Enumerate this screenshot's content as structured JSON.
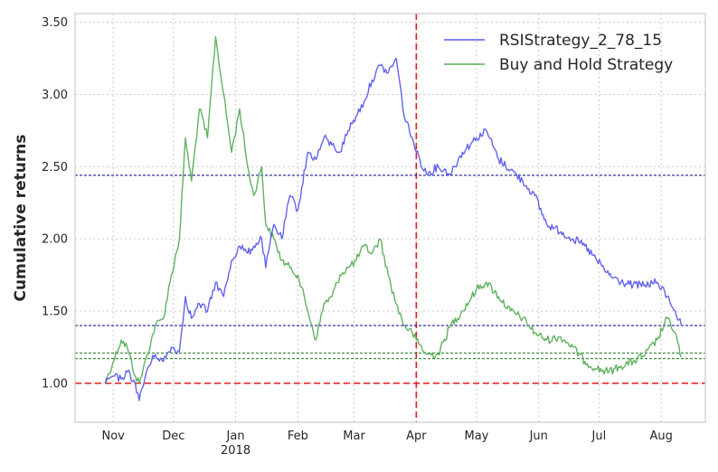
{
  "chart_data": {
    "type": "line",
    "title": "",
    "xlabel": "",
    "ylabel": "Cumulative returns",
    "x_ticks": [
      {
        "date": "2017-11-01",
        "label": "Nov",
        "sublabel": ""
      },
      {
        "date": "2017-12-01",
        "label": "Dec",
        "sublabel": ""
      },
      {
        "date": "2018-01-01",
        "label": "Jan",
        "sublabel": "2018"
      },
      {
        "date": "2018-02-01",
        "label": "Feb",
        "sublabel": ""
      },
      {
        "date": "2018-03-01",
        "label": "Mar",
        "sublabel": ""
      },
      {
        "date": "2018-04-01",
        "label": "Apr",
        "sublabel": ""
      },
      {
        "date": "2018-05-01",
        "label": "May",
        "sublabel": ""
      },
      {
        "date": "2018-06-01",
        "label": "Jun",
        "sublabel": ""
      },
      {
        "date": "2018-07-01",
        "label": "Jul",
        "sublabel": ""
      },
      {
        "date": "2018-08-01",
        "label": "Aug",
        "sublabel": ""
      }
    ],
    "y_ticks": [
      "1.00",
      "1.50",
      "2.00",
      "2.50",
      "3.00",
      "3.50"
    ],
    "xlim": [
      "2017-10-13",
      "2018-08-23"
    ],
    "ylim": [
      0.73,
      3.56
    ],
    "grid": true,
    "legend_position": "top-right",
    "series": [
      {
        "name": "RSIStrategy_2_78_15",
        "color": "#5b5bec",
        "x": [
          "2017-10-28",
          "2017-11-01",
          "2017-11-05",
          "2017-11-08",
          "2017-11-12",
          "2017-11-14",
          "2017-11-18",
          "2017-11-22",
          "2017-11-26",
          "2017-11-30",
          "2017-12-04",
          "2017-12-07",
          "2017-12-10",
          "2017-12-14",
          "2017-12-18",
          "2017-12-22",
          "2017-12-26",
          "2017-12-30",
          "2018-01-03",
          "2018-01-07",
          "2018-01-10",
          "2018-01-14",
          "2018-01-16",
          "2018-01-20",
          "2018-01-24",
          "2018-01-28",
          "2018-02-01",
          "2018-02-06",
          "2018-02-10",
          "2018-02-14",
          "2018-02-18",
          "2018-02-22",
          "2018-02-26",
          "2018-03-02",
          "2018-03-06",
          "2018-03-10",
          "2018-03-14",
          "2018-03-18",
          "2018-03-22",
          "2018-03-26",
          "2018-03-30",
          "2018-04-01",
          "2018-04-06",
          "2018-04-12",
          "2018-04-18",
          "2018-04-24",
          "2018-05-01",
          "2018-05-06",
          "2018-05-12",
          "2018-05-18",
          "2018-05-24",
          "2018-05-30",
          "2018-06-05",
          "2018-06-12",
          "2018-06-18",
          "2018-06-24",
          "2018-06-30",
          "2018-07-06",
          "2018-07-12",
          "2018-07-18",
          "2018-07-24",
          "2018-07-30",
          "2018-08-04",
          "2018-08-08",
          "2018-08-11"
        ],
        "y": [
          1.0,
          1.05,
          1.03,
          1.08,
          1.0,
          0.88,
          1.1,
          1.2,
          1.15,
          1.25,
          1.22,
          1.6,
          1.45,
          1.55,
          1.5,
          1.7,
          1.6,
          1.85,
          1.95,
          1.9,
          1.95,
          2.0,
          1.8,
          2.1,
          2.0,
          2.3,
          2.2,
          2.6,
          2.55,
          2.7,
          2.65,
          2.6,
          2.75,
          2.85,
          2.95,
          3.1,
          3.2,
          3.15,
          3.25,
          2.85,
          2.7,
          2.6,
          2.45,
          2.5,
          2.45,
          2.6,
          2.7,
          2.75,
          2.55,
          2.48,
          2.4,
          2.3,
          2.1,
          2.05,
          2.0,
          1.95,
          1.85,
          1.75,
          1.7,
          1.68,
          1.68,
          1.7,
          1.6,
          1.5,
          1.4
        ]
      },
      {
        "name": "Buy and Hold Strategy",
        "color": "#59ad59",
        "x": [
          "2017-10-28",
          "2017-11-01",
          "2017-11-05",
          "2017-11-08",
          "2017-11-12",
          "2017-11-14",
          "2017-11-18",
          "2017-11-22",
          "2017-11-26",
          "2017-11-30",
          "2017-12-04",
          "2017-12-07",
          "2017-12-10",
          "2017-12-14",
          "2017-12-18",
          "2017-12-22",
          "2017-12-26",
          "2017-12-30",
          "2018-01-03",
          "2018-01-07",
          "2018-01-10",
          "2018-01-14",
          "2018-01-16",
          "2018-01-20",
          "2018-01-24",
          "2018-01-28",
          "2018-02-01",
          "2018-02-06",
          "2018-02-10",
          "2018-02-14",
          "2018-02-18",
          "2018-02-22",
          "2018-02-26",
          "2018-03-02",
          "2018-03-06",
          "2018-03-10",
          "2018-03-14",
          "2018-03-18",
          "2018-03-22",
          "2018-03-26",
          "2018-03-30",
          "2018-04-01",
          "2018-04-06",
          "2018-04-12",
          "2018-04-18",
          "2018-04-24",
          "2018-05-01",
          "2018-05-06",
          "2018-05-12",
          "2018-05-18",
          "2018-05-24",
          "2018-05-30",
          "2018-06-05",
          "2018-06-12",
          "2018-06-18",
          "2018-06-24",
          "2018-06-30",
          "2018-07-06",
          "2018-07-12",
          "2018-07-18",
          "2018-07-24",
          "2018-07-30",
          "2018-08-04",
          "2018-08-08",
          "2018-08-11"
        ],
        "y": [
          1.0,
          1.15,
          1.3,
          1.25,
          1.05,
          1.0,
          1.2,
          1.4,
          1.45,
          1.75,
          2.0,
          2.7,
          2.4,
          2.9,
          2.7,
          3.4,
          3.0,
          2.6,
          2.9,
          2.5,
          2.3,
          2.5,
          2.1,
          2.0,
          1.85,
          1.8,
          1.75,
          1.5,
          1.3,
          1.55,
          1.6,
          1.75,
          1.8,
          1.85,
          1.95,
          1.9,
          2.0,
          1.75,
          1.55,
          1.4,
          1.35,
          1.3,
          1.2,
          1.2,
          1.4,
          1.5,
          1.65,
          1.7,
          1.6,
          1.5,
          1.45,
          1.35,
          1.3,
          1.32,
          1.25,
          1.15,
          1.1,
          1.08,
          1.12,
          1.15,
          1.2,
          1.3,
          1.45,
          1.35,
          1.18
        ]
      }
    ],
    "reference_lines": [
      {
        "orientation": "horizontal",
        "value": 1.0,
        "color": "#e41a1c",
        "style": "dashed"
      },
      {
        "orientation": "vertical",
        "value": "2018-04-01",
        "color": "#e41a1c",
        "style": "dashed"
      },
      {
        "orientation": "horizontal",
        "value": 2.44,
        "color": "#00008b",
        "style": "dashed"
      },
      {
        "orientation": "horizontal",
        "value": 1.4,
        "color": "#00008b",
        "style": "dashed"
      },
      {
        "orientation": "horizontal",
        "value": 1.21,
        "color": "#006400",
        "style": "dashed"
      },
      {
        "orientation": "horizontal",
        "value": 1.17,
        "color": "#006400",
        "style": "dashed"
      }
    ]
  }
}
